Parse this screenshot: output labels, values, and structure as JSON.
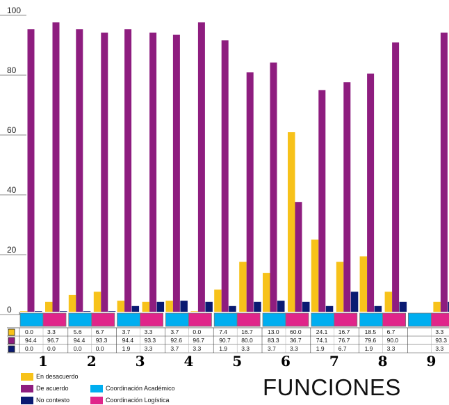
{
  "chart_data": {
    "type": "bar",
    "title": "FUNCIONES",
    "categories": [
      "1",
      "2",
      "3",
      "4",
      "5",
      "6",
      "7",
      "8",
      "9"
    ],
    "groups": [
      "Coordinación Académico",
      "Coordinación Logística"
    ],
    "group_colors": [
      "#00aef0",
      "#e0258a"
    ],
    "series": [
      {
        "name": "En desacuerdo",
        "color": "#f7c21a",
        "values": [
          [
            0.0,
            3.3
          ],
          [
            5.6,
            6.7
          ],
          [
            3.7,
            3.3
          ],
          [
            3.7,
            0.0
          ],
          [
            7.4,
            16.7
          ],
          [
            13.0,
            60.0
          ],
          [
            24.1,
            16.7
          ],
          [
            18.5,
            6.7
          ],
          [
            null,
            3.3
          ]
        ]
      },
      {
        "name": "De acuerdo",
        "color": "#8e1d7f",
        "values": [
          [
            94.4,
            96.7
          ],
          [
            94.4,
            93.3
          ],
          [
            94.4,
            93.3
          ],
          [
            92.6,
            96.7
          ],
          [
            90.7,
            80.0
          ],
          [
            83.3,
            36.7
          ],
          [
            74.1,
            76.7
          ],
          [
            79.6,
            90.0
          ],
          [
            null,
            93.3
          ]
        ]
      },
      {
        "name": "No contesto",
        "color": "#0a1a72",
        "values": [
          [
            0.0,
            0.0
          ],
          [
            0.0,
            0.0
          ],
          [
            1.9,
            3.3
          ],
          [
            3.7,
            3.3
          ],
          [
            1.9,
            3.3
          ],
          [
            3.7,
            3.3
          ],
          [
            1.9,
            6.7
          ],
          [
            1.9,
            3.3
          ],
          [
            null,
            3.3
          ]
        ]
      }
    ],
    "table_cells": [
      [
        [
          "0.0",
          "3.3"
        ],
        [
          "5.6",
          "6.7"
        ],
        [
          "3.7",
          "3.3"
        ],
        [
          "3.7",
          "0.0"
        ],
        [
          "7.4",
          "16.7"
        ],
        [
          "13.0",
          "60.0"
        ],
        [
          "24.1",
          "16.7"
        ],
        [
          "18.5",
          "6.7"
        ],
        [
          "",
          "3.3"
        ]
      ],
      [
        [
          "94.4",
          "96.7"
        ],
        [
          "94.4",
          "93.3"
        ],
        [
          "94.4",
          "93.3"
        ],
        [
          "92.6",
          "96.7"
        ],
        [
          "90.7",
          "80.0"
        ],
        [
          "83.3",
          "36.7"
        ],
        [
          "74.1",
          "76.7"
        ],
        [
          "79.6",
          "90.0"
        ],
        [
          "",
          "93.3"
        ]
      ],
      [
        [
          "0.0",
          "0.0"
        ],
        [
          "0.0",
          "0.0"
        ],
        [
          "1.9",
          "3.3"
        ],
        [
          "3.7",
          "3.3"
        ],
        [
          "1.9",
          "3.3"
        ],
        [
          "3.7",
          "3.3"
        ],
        [
          "1.9",
          "6.7"
        ],
        [
          "1.9",
          "3.3"
        ],
        [
          "",
          "3.3"
        ]
      ]
    ],
    "yticks": [
      "0",
      "20",
      "40",
      "60",
      "80",
      "100"
    ],
    "ylim": [
      0,
      100
    ],
    "grid": false,
    "legend_position": "bottom-left"
  }
}
